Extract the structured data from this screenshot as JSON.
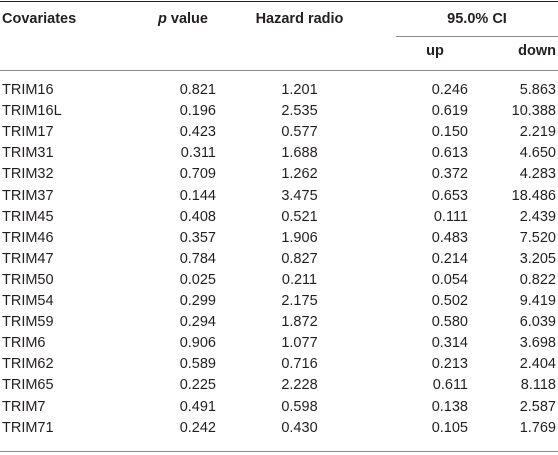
{
  "table": {
    "headers": {
      "covariates": "Covariates",
      "p_italic": "p",
      "p_rest": " value",
      "hazard": "Hazard radio",
      "ci": "95.0% CI",
      "up": "up",
      "down": "down"
    },
    "rows": [
      {
        "name": "TRIM16",
        "p": "0.821",
        "hr": "1.201",
        "up": "0.246",
        "down": "5.863"
      },
      {
        "name": "TRIM16L",
        "p": "0.196",
        "hr": "2.535",
        "up": "0.619",
        "down": "10.388"
      },
      {
        "name": "TRIM17",
        "p": "0.423",
        "hr": "0.577",
        "up": "0.150",
        "down": "2.219"
      },
      {
        "name": "TRIM31",
        "p": "0.311",
        "hr": "1.688",
        "up": "0.613",
        "down": "4.650"
      },
      {
        "name": "TRIM32",
        "p": "0.709",
        "hr": "1.262",
        "up": "0.372",
        "down": "4.283"
      },
      {
        "name": "TRIM37",
        "p": "0.144",
        "hr": "3.475",
        "up": "0.653",
        "down": "18.486"
      },
      {
        "name": "TRIM45",
        "p": "0.408",
        "hr": "0.521",
        "up": "0.111",
        "down": "2.439"
      },
      {
        "name": "TRIM46",
        "p": "0.357",
        "hr": "1.906",
        "up": "0.483",
        "down": "7.520"
      },
      {
        "name": "TRIM47",
        "p": "0.784",
        "hr": "0.827",
        "up": "0.214",
        "down": "3.205"
      },
      {
        "name": "TRIM50",
        "p": "0.025",
        "hr": "0.211",
        "up": "0.054",
        "down": "0.822"
      },
      {
        "name": "TRIM54",
        "p": "0.299",
        "hr": "2.175",
        "up": "0.502",
        "down": "9.419"
      },
      {
        "name": "TRIM59",
        "p": "0.294",
        "hr": "1.872",
        "up": "0.580",
        "down": "6.039"
      },
      {
        "name": "TRIM6",
        "p": "0.906",
        "hr": "1.077",
        "up": "0.314",
        "down": "3.698"
      },
      {
        "name": "TRIM62",
        "p": "0.589",
        "hr": "0.716",
        "up": "0.213",
        "down": "2.404"
      },
      {
        "name": "TRIM65",
        "p": "0.225",
        "hr": "2.228",
        "up": "0.611",
        "down": "8.118"
      },
      {
        "name": "TRIM7",
        "p": "0.491",
        "hr": "0.598",
        "up": "0.138",
        "down": "2.587"
      },
      {
        "name": "TRIM71",
        "p": "0.242",
        "hr": "0.430",
        "up": "0.105",
        "down": "1.769"
      }
    ]
  }
}
